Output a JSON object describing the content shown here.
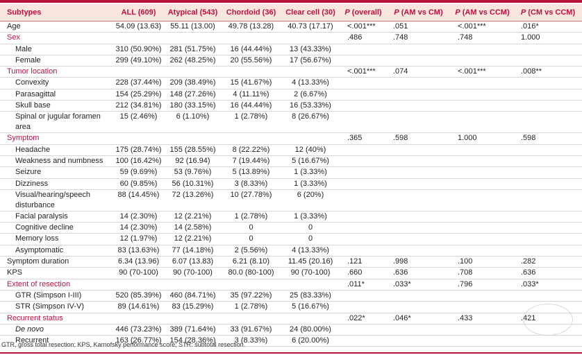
{
  "header": {
    "col0": "Subtypes",
    "col1": "ALL (609)",
    "col2": "Atypical (543)",
    "col3": "Chordoid (36)",
    "col4": "Clear cell (30)",
    "col5_p": "P",
    "col5_rest": "(overall)",
    "col6_p": "P",
    "col6_rest": "(AM vs CM)",
    "col7_p": "P",
    "col7_rest": "(AM vs CCM)",
    "col8_p": "P",
    "col8_rest": "(CM vs CCM)"
  },
  "rows": [
    {
      "type": "data",
      "label": "Age",
      "c": [
        "54.09 (13.63)",
        "55.11 (13.00)",
        "49.78 (13.28)",
        "40.73 (17.17)",
        "<.001***",
        ".051",
        "<.001***",
        ".016*"
      ]
    },
    {
      "type": "section",
      "label": "Sex",
      "c": [
        "",
        "",
        "",
        "",
        ".486",
        ".748",
        ".748",
        "1.000"
      ]
    },
    {
      "type": "sub",
      "label": "Male",
      "c": [
        "310 (50.90%)",
        "281 (51.75%)",
        "16 (44.44%)",
        "13 (43.33%)",
        "",
        "",
        "",
        ""
      ]
    },
    {
      "type": "sub",
      "label": "Female",
      "c": [
        "299 (49.10%)",
        "262 (48.25%)",
        "20 (55.56%)",
        "17 (56.67%)",
        "",
        "",
        "",
        ""
      ]
    },
    {
      "type": "section",
      "label": "Tumor location",
      "c": [
        "",
        "",
        "",
        "",
        "<.001***",
        ".074",
        "<.001***",
        ".008**"
      ]
    },
    {
      "type": "sub",
      "label": "Convexity",
      "c": [
        "228 (37.44%)",
        "209 (38.49%)",
        "15 (41.67%)",
        "4 (13.33%)",
        "",
        "",
        "",
        ""
      ]
    },
    {
      "type": "sub",
      "label": "Parasagittal",
      "c": [
        "154 (25.29%)",
        "148 (27.26%)",
        "4 (11.11%)",
        "2 (6.67%)",
        "",
        "",
        "",
        ""
      ]
    },
    {
      "type": "sub",
      "label": "Skull base",
      "c": [
        "212 (34.81%)",
        "180 (33.15%)",
        "16 (44.44%)",
        "16 (53.33%)",
        "",
        "",
        "",
        ""
      ]
    },
    {
      "type": "subtall",
      "label": "Spinal or jugular foramen area",
      "c": [
        "15 (2.46%)",
        "6 (1.10%)",
        "1 (2.78%)",
        "8 (26.67%)",
        "",
        "",
        "",
        ""
      ]
    },
    {
      "type": "section",
      "label": "Symptom",
      "c": [
        "",
        "",
        "",
        "",
        ".365",
        ".598",
        "1.000",
        ".598"
      ]
    },
    {
      "type": "sub",
      "label": "Headache",
      "c": [
        "175 (28.74%)",
        "155 (28.55%)",
        "8 (22.22%)",
        "12 (40%)",
        "",
        "",
        "",
        ""
      ]
    },
    {
      "type": "sub",
      "label": "Weakness and numbness",
      "c": [
        "100 (16.42%)",
        "92 (16.94)",
        "7 (19.44%)",
        "5 (16.67%)",
        "",
        "",
        "",
        ""
      ]
    },
    {
      "type": "sub",
      "label": "Seizure",
      "c": [
        "59 (9.69%)",
        "53 (9.76%)",
        "5 (13.89%)",
        "1 (3.33%)",
        "",
        "",
        "",
        ""
      ]
    },
    {
      "type": "sub",
      "label": "Dizziness",
      "c": [
        "60 (9.85%)",
        "56 (10.31%)",
        "3 (8.33%)",
        "1 (3.33%)",
        "",
        "",
        "",
        ""
      ]
    },
    {
      "type": "subtall",
      "label": "Visual/hearing/speech disturbance",
      "c": [
        "88 (14.45%)",
        "72 (13.26%)",
        "10 (27.78%)",
        "6 (20%)",
        "",
        "",
        "",
        ""
      ]
    },
    {
      "type": "sub",
      "label": "Facial paralysis",
      "c": [
        "14 (2.30%)",
        "12 (2.21%)",
        "1 (2.78%)",
        "1 (3.33%)",
        "",
        "",
        "",
        ""
      ]
    },
    {
      "type": "sub",
      "label": "Cognitive decline",
      "c": [
        "14 (2.30%)",
        "14 (2.58%)",
        "0",
        "0",
        "",
        "",
        "",
        ""
      ]
    },
    {
      "type": "sub",
      "label": "Memory loss",
      "c": [
        "12 (1.97%)",
        "12 (2.21%)",
        "0",
        "0",
        "",
        "",
        "",
        ""
      ]
    },
    {
      "type": "sub",
      "label": "Asymptomatic",
      "c": [
        "83 (13.63%)",
        "77 (14.18%)",
        "2 (5.56%)",
        "4 (13.33%)",
        "",
        "",
        "",
        ""
      ]
    },
    {
      "type": "data",
      "label": "Symptom duration",
      "c": [
        "6.34 (13.96)",
        "6.07 (13.83)",
        "6.21 (8.10)",
        "11.45 (20.16)",
        ".121",
        ".998",
        ".100",
        ".282"
      ]
    },
    {
      "type": "data",
      "label": "KPS",
      "c": [
        "90 (70-100)",
        "90 (70-100)",
        "80.0 (80-100)",
        "90 (70-100)",
        ".660",
        ".636",
        ".708",
        ".636"
      ]
    },
    {
      "type": "section",
      "label": "Extent of resection",
      "c": [
        "",
        "",
        "",
        "",
        ".011*",
        ".033*",
        ".796",
        ".033*"
      ]
    },
    {
      "type": "sub",
      "label": "GTR (Simpson I-III)",
      "c": [
        "520 (85.39%)",
        "460 (84.71%)",
        "35 (97.22%)",
        "25 (83.33%)",
        "",
        "",
        "",
        ""
      ]
    },
    {
      "type": "sub",
      "label": "STR (Simpson IV-V)",
      "c": [
        "89 (14.61%)",
        "83 (15.29%)",
        "1 (2.78%)",
        "5 (16.67%)",
        "",
        "",
        "",
        ""
      ]
    },
    {
      "type": "section",
      "label": "Recurrent status",
      "c": [
        "",
        "",
        "",
        "",
        ".022*",
        ".046*",
        ".433",
        ".421"
      ]
    },
    {
      "type": "subitalic",
      "label": "De novo",
      "c": [
        "446 (73.23%)",
        "389 (71.64%)",
        "33 (91.67%)",
        "24 (80.00%)",
        "",
        "",
        "",
        ""
      ]
    },
    {
      "type": "sub",
      "label": "Recurrent",
      "c": [
        "163 (26.77%)",
        "154 (28.36%)",
        "3 (8.33%)",
        "6 (20.00%)",
        "",
        "",
        "",
        ""
      ]
    }
  ],
  "footnote": "GTR, gross total resection; KPS, Karnofsky performance score; STR: subtotal resection.",
  "colors": {
    "accent": "#c0103a",
    "header_bg": "#f9e6df"
  }
}
